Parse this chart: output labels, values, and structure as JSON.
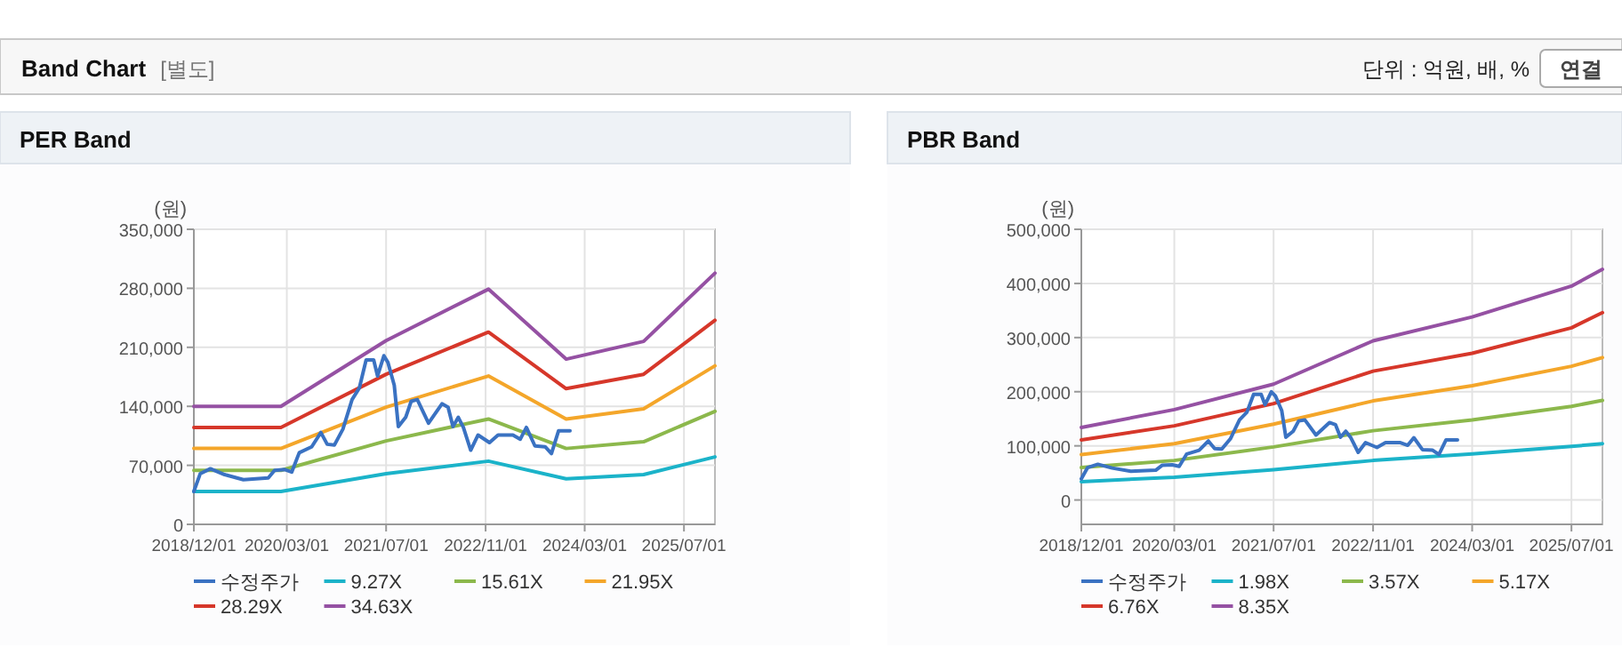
{
  "chart_data": [
    {
      "type": "other",
      "title": "Band Chart",
      "subtitle": "[별도]",
      "annotations": [
        "단위 : 억원, 배, %",
        "연결"
      ]
    },
    {
      "type": "line",
      "title": "PER Band",
      "ylabel": "(원)",
      "grid": true,
      "legend": "bottom",
      "xlim": [
        "2018-12-01",
        "2025-11-30"
      ],
      "xticks": [
        {
          "value": "2018-12-01",
          "label": "2018/12/01"
        },
        {
          "value": "2020-03-01",
          "label": "2020/03/01"
        },
        {
          "value": "2021-07-01",
          "label": "2021/07/01"
        },
        {
          "value": "2022-11-01",
          "label": "2022/11/01"
        },
        {
          "value": "2024-03-01",
          "label": "2024/03/01"
        },
        {
          "value": "2025-07-01",
          "label": "2025/07/01"
        }
      ],
      "ylim": [
        0,
        350000
      ],
      "series": [
        {
          "name": "수정주가",
          "color": "#3a72c2",
          "x": [
            "2018-12-01",
            "2019-01-01",
            "2019-02-20",
            "2019-05-01",
            "2019-08-01",
            "2019-12-01",
            "2020-01-01",
            "2020-02-20",
            "2020-03-25",
            "2020-05-01",
            "2020-07-01",
            "2020-08-15",
            "2020-09-15",
            "2020-10-20",
            "2020-12-01",
            "2021-01-15",
            "2021-02-20",
            "2021-03-25",
            "2021-05-01",
            "2021-05-20",
            "2021-06-20",
            "2021-07-10",
            "2021-08-10",
            "2021-08-30",
            "2021-10-05",
            "2021-11-01",
            "2021-12-01",
            "2022-01-25",
            "2022-04-01",
            "2022-05-01",
            "2022-05-25",
            "2022-06-20",
            "2022-07-15",
            "2022-08-20",
            "2022-09-25",
            "2022-11-20",
            "2023-01-01",
            "2023-03-15",
            "2023-04-20",
            "2023-05-20",
            "2023-07-01",
            "2023-08-20",
            "2023-09-20",
            "2023-10-25",
            "2023-12-20"
          ],
          "values": [
            39000,
            60000,
            66000,
            59000,
            53000,
            55000,
            64000,
            65000,
            62000,
            85000,
            92000,
            109000,
            95000,
            94000,
            113000,
            148000,
            162000,
            195000,
            195000,
            176000,
            200000,
            192000,
            165000,
            116000,
            127000,
            146000,
            148000,
            120000,
            143000,
            139000,
            116000,
            127000,
            115000,
            88000,
            106000,
            97000,
            106000,
            106000,
            101000,
            115000,
            93000,
            92000,
            84000,
            111000,
            111000
          ]
        },
        {
          "name": "9.27X",
          "color": "#1bb3c9",
          "x": [
            "2018-12-01",
            "2020-02-01",
            "2021-07-01",
            "2022-11-15",
            "2023-12-01",
            "2024-12-15",
            "2025-11-30"
          ],
          "values": [
            39000,
            39000,
            60000,
            75000,
            54000,
            59000,
            80000
          ]
        },
        {
          "name": "15.61X",
          "color": "#8cb84c",
          "x": [
            "2018-12-01",
            "2020-02-01",
            "2021-07-01",
            "2022-11-15",
            "2023-12-01",
            "2024-12-15",
            "2025-11-30"
          ],
          "values": [
            64000,
            64000,
            99000,
            125000,
            90000,
            98000,
            134000
          ]
        },
        {
          "name": "21.95X",
          "color": "#f4a62a",
          "x": [
            "2018-12-01",
            "2020-02-01",
            "2021-07-01",
            "2022-11-15",
            "2023-12-01",
            "2024-12-15",
            "2025-11-30"
          ],
          "values": [
            90000,
            90000,
            139000,
            176000,
            125000,
            137000,
            188000
          ]
        },
        {
          "name": "28.29X",
          "color": "#d6372a",
          "x": [
            "2018-12-01",
            "2020-02-01",
            "2021-07-01",
            "2022-11-15",
            "2023-12-01",
            "2024-12-15",
            "2025-11-30"
          ],
          "values": [
            115000,
            115000,
            178000,
            228000,
            161000,
            178000,
            242000
          ]
        },
        {
          "name": "34.63X",
          "color": "#9551a3",
          "x": [
            "2018-12-01",
            "2020-02-01",
            "2021-07-01",
            "2022-11-15",
            "2023-12-01",
            "2024-12-15",
            "2025-11-30"
          ],
          "values": [
            140000,
            140000,
            218000,
            279000,
            196000,
            217000,
            298000
          ]
        }
      ],
      "yticks": [
        {
          "value": 0,
          "label": "0"
        },
        {
          "value": 70000,
          "label": "70,000"
        },
        {
          "value": 140000,
          "label": "140,000"
        },
        {
          "value": 210000,
          "label": "210,000"
        },
        {
          "value": 280000,
          "label": "280,000"
        },
        {
          "value": 350000,
          "label": "350,000"
        }
      ]
    },
    {
      "type": "line",
      "title": "PBR Band",
      "ylabel": "(원)",
      "grid": true,
      "legend": "bottom",
      "xlim": [
        "2018-12-01",
        "2025-11-30"
      ],
      "xticks": [
        {
          "value": "2018-12-01",
          "label": "2018/12/01"
        },
        {
          "value": "2020-03-01",
          "label": "2020/03/01"
        },
        {
          "value": "2021-07-01",
          "label": "2021/07/01"
        },
        {
          "value": "2022-11-01",
          "label": "2022/11/01"
        },
        {
          "value": "2024-03-01",
          "label": "2024/03/01"
        },
        {
          "value": "2025-07-01",
          "label": "2025/07/01"
        }
      ],
      "ylim": [
        -45000,
        500000
      ],
      "yticks": [
        {
          "value": 0,
          "label": "0"
        },
        {
          "value": 100000,
          "label": "100,000"
        },
        {
          "value": 200000,
          "label": "200,000"
        },
        {
          "value": 300000,
          "label": "300,000"
        },
        {
          "value": 400000,
          "label": "400,000"
        },
        {
          "value": 500000,
          "label": "500,000"
        }
      ],
      "series": [
        {
          "name": "수정주가",
          "color": "#3a72c2",
          "x": [
            "2018-12-01",
            "2019-01-01",
            "2019-02-20",
            "2019-05-01",
            "2019-08-01",
            "2019-12-01",
            "2020-01-01",
            "2020-02-20",
            "2020-03-25",
            "2020-05-01",
            "2020-07-01",
            "2020-08-15",
            "2020-09-15",
            "2020-10-20",
            "2020-12-01",
            "2021-01-15",
            "2021-02-20",
            "2021-03-25",
            "2021-05-01",
            "2021-05-20",
            "2021-06-20",
            "2021-07-10",
            "2021-08-10",
            "2021-08-30",
            "2021-10-05",
            "2021-11-01",
            "2021-12-01",
            "2022-01-25",
            "2022-04-01",
            "2022-05-01",
            "2022-05-25",
            "2022-06-20",
            "2022-07-15",
            "2022-08-20",
            "2022-09-25",
            "2022-11-20",
            "2023-01-01",
            "2023-03-15",
            "2023-04-20",
            "2023-05-20",
            "2023-07-01",
            "2023-08-20",
            "2023-09-20",
            "2023-10-25",
            "2023-12-20"
          ],
          "values": [
            39000,
            60000,
            66000,
            59000,
            53000,
            55000,
            64000,
            65000,
            62000,
            85000,
            92000,
            109000,
            95000,
            94000,
            113000,
            148000,
            162000,
            195000,
            195000,
            176000,
            200000,
            192000,
            165000,
            116000,
            127000,
            146000,
            148000,
            120000,
            143000,
            139000,
            116000,
            127000,
            115000,
            88000,
            106000,
            97000,
            106000,
            106000,
            101000,
            115000,
            93000,
            92000,
            84000,
            111000,
            111000
          ]
        },
        {
          "name": "1.98X",
          "color": "#1bb3c9",
          "x": [
            "2018-12-01",
            "2020-03-01",
            "2021-07-01",
            "2022-11-01",
            "2024-03-01",
            "2025-07-01",
            "2025-11-30"
          ],
          "values": [
            34000,
            42000,
            56000,
            73000,
            85000,
            99000,
            104000
          ]
        },
        {
          "name": "3.57X",
          "color": "#8cb84c",
          "x": [
            "2018-12-01",
            "2020-03-01",
            "2021-07-01",
            "2022-11-01",
            "2024-03-01",
            "2025-07-01",
            "2025-11-30"
          ],
          "values": [
            60000,
            73000,
            98000,
            128000,
            148000,
            173000,
            184000
          ]
        },
        {
          "name": "5.17X",
          "color": "#f4a62a",
          "x": [
            "2018-12-01",
            "2020-03-01",
            "2021-07-01",
            "2022-11-01",
            "2024-03-01",
            "2025-07-01",
            "2025-11-30"
          ],
          "values": [
            84000,
            104000,
            140000,
            183000,
            211000,
            247000,
            263000
          ]
        },
        {
          "name": "6.76X",
          "color": "#d6372a",
          "x": [
            "2018-12-01",
            "2020-03-01",
            "2021-07-01",
            "2022-11-01",
            "2024-03-01",
            "2025-07-01",
            "2025-11-30"
          ],
          "values": [
            111000,
            137000,
            178000,
            238000,
            271000,
            318000,
            346000
          ]
        },
        {
          "name": "8.35X",
          "color": "#9551a3",
          "x": [
            "2018-12-01",
            "2020-03-01",
            "2021-07-01",
            "2022-11-01",
            "2024-03-01",
            "2025-07-01",
            "2025-11-30"
          ],
          "values": [
            134000,
            167000,
            214000,
            294000,
            338000,
            395000,
            426000
          ]
        }
      ]
    }
  ]
}
